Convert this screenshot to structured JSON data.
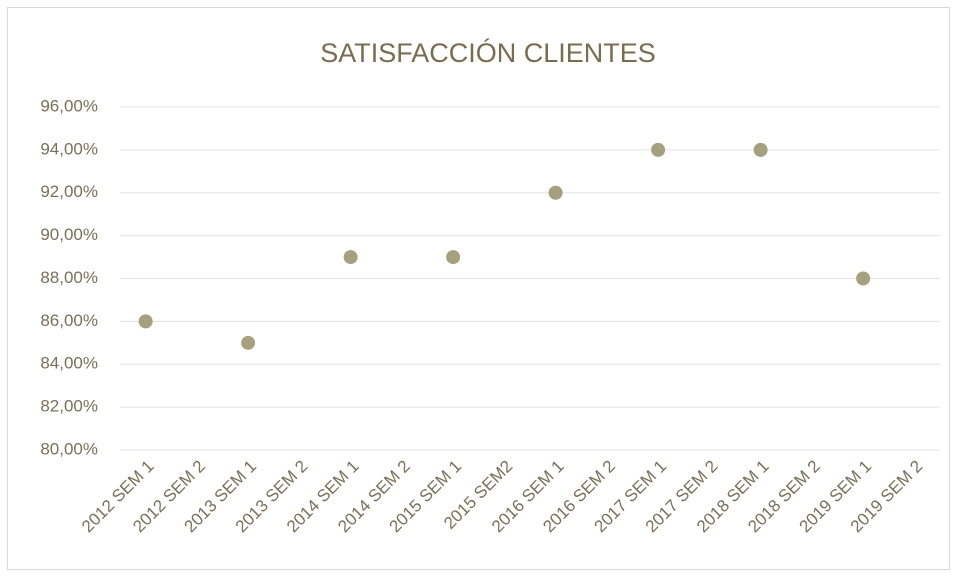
{
  "chart_data": {
    "type": "scatter",
    "title": "SATISFACCIÓN CLIENTES",
    "categories": [
      "2012 SEM 1",
      "2012 SEM 2",
      "2013 SEM 1",
      "2013 SEM 2",
      "2014 SEM 1",
      "2014 SEM 2",
      "2015 SEM 1",
      "2015 SEM2",
      "2016 SEM 1",
      "2016 SEM 2",
      "2017 SEM 1",
      "2017 SEM 2",
      "2018 SEM 1",
      "2018 SEM 2",
      "2019 SEM 1",
      "2019 SEM 2"
    ],
    "values": [
      86,
      null,
      85,
      null,
      89,
      null,
      89,
      null,
      92,
      null,
      94,
      null,
      94,
      null,
      88,
      null
    ],
    "color": "#a5a07d",
    "ylim": [
      80,
      96
    ],
    "yticks": [
      {
        "value": 80,
        "label": "80,00%"
      },
      {
        "value": 82,
        "label": "82,00%"
      },
      {
        "value": 84,
        "label": "84,00%"
      },
      {
        "value": 86,
        "label": "86,00%"
      },
      {
        "value": 88,
        "label": "88,00%"
      },
      {
        "value": 90,
        "label": "90,00%"
      },
      {
        "value": 92,
        "label": "92,00%"
      },
      {
        "value": 94,
        "label": "94,00%"
      },
      {
        "value": 96,
        "label": "96,00%"
      }
    ],
    "grid": true
  }
}
